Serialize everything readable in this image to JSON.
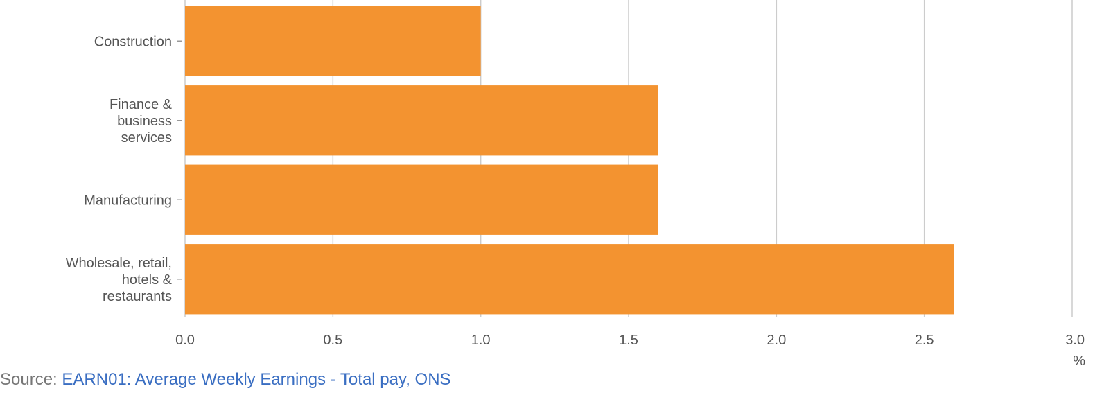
{
  "chart_data": {
    "type": "bar",
    "orientation": "horizontal",
    "categories": [
      [
        "Construction"
      ],
      [
        "Finance &",
        "business",
        "services"
      ],
      [
        "Manufacturing"
      ],
      [
        "Wholesale, retail,",
        "hotels &",
        "restaurants"
      ]
    ],
    "values": [
      1.0,
      1.6,
      1.6,
      2.6
    ],
    "xlim": [
      0,
      3.0
    ],
    "x_ticks": [
      "0.0",
      "0.5",
      "1.0",
      "1.5",
      "2.0",
      "2.5",
      "3.0"
    ],
    "x_unit": "%",
    "grid": true,
    "bar_color": "#f39330"
  },
  "source": {
    "prefix": "Source: ",
    "link_text": "EARN01: Average Weekly Earnings - Total pay, ONS"
  }
}
